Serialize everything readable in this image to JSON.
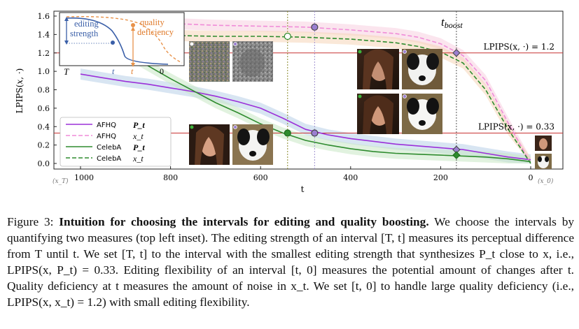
{
  "chart_data": {
    "type": "line",
    "xlabel": "t",
    "ylabel": "LPIPS(x, ·)",
    "xlim": [
      1000,
      0
    ],
    "ylim": [
      0,
      1.6
    ],
    "x_ticks": [
      1000,
      800,
      600,
      400,
      200,
      0
    ],
    "x_tick_labels": [
      "1000",
      "800",
      "600",
      "400",
      "200",
      "0"
    ],
    "x_left_annotation": "(x_T)",
    "x_right_annotation": "(x_0)",
    "y_ticks": [
      "0.0",
      "0.2",
      "0.4",
      "0.6",
      "0.8",
      "1.0",
      "1.2",
      "1.4",
      "1.6"
    ],
    "y_tick_values": [
      0,
      0.2,
      0.4,
      0.6,
      0.8,
      1.0,
      1.2,
      1.4,
      1.6
    ],
    "grid": false,
    "legend_position": "bottom-left",
    "series": [
      {
        "name": "AFHQ",
        "symbol": "P_t",
        "color": "#9b30d9",
        "dash": "solid",
        "x": [
          1000,
          950,
          900,
          850,
          800,
          750,
          700,
          650,
          600,
          550,
          500,
          450,
          400,
          350,
          300,
          250,
          200,
          150,
          100,
          50,
          0
        ],
        "values": [
          0.97,
          0.93,
          0.89,
          0.86,
          0.82,
          0.78,
          0.73,
          0.67,
          0.6,
          0.49,
          0.37,
          0.31,
          0.27,
          0.24,
          0.21,
          0.19,
          0.17,
          0.15,
          0.11,
          0.07,
          0.04
        ]
      },
      {
        "name": "AFHQ",
        "symbol": "x_t",
        "color": "#f08cd8",
        "dash": "dashed",
        "x": [
          1000,
          900,
          800,
          700,
          600,
          500,
          400,
          300,
          250,
          200,
          150,
          100,
          50,
          0
        ],
        "values": [
          1.54,
          1.53,
          1.52,
          1.5,
          1.49,
          1.48,
          1.45,
          1.41,
          1.37,
          1.3,
          1.17,
          0.9,
          0.44,
          0.0
        ]
      },
      {
        "name": "CelebA",
        "symbol": "P_t",
        "color": "#2e8b2e",
        "dash": "solid",
        "x": [
          1000,
          950,
          900,
          850,
          800,
          750,
          700,
          650,
          600,
          550,
          500,
          450,
          400,
          350,
          300,
          250,
          200,
          150,
          100,
          50,
          0
        ],
        "values": [
          1.5,
          1.35,
          1.2,
          1.06,
          0.92,
          0.79,
          0.66,
          0.55,
          0.43,
          0.33,
          0.25,
          0.2,
          0.16,
          0.13,
          0.11,
          0.1,
          0.09,
          0.08,
          0.07,
          0.05,
          0.02
        ]
      },
      {
        "name": "CelebA",
        "symbol": "x_t",
        "color": "#2e8b2e",
        "dash": "dashed",
        "x": [
          1000,
          900,
          800,
          700,
          600,
          500,
          400,
          300,
          250,
          200,
          150,
          100,
          50,
          0
        ],
        "values": [
          1.4,
          1.39,
          1.39,
          1.38,
          1.38,
          1.37,
          1.35,
          1.31,
          1.27,
          1.21,
          1.09,
          0.8,
          0.37,
          0.0
        ]
      }
    ],
    "markers": [
      {
        "x": 540,
        "y": 1.38,
        "color": "#2e8b2e",
        "fill": "#ffffff"
      },
      {
        "x": 480,
        "y": 1.48,
        "color": "#444444",
        "fill": "#9b7fd0"
      },
      {
        "x": 165,
        "y": 1.2,
        "color": "#444444",
        "fill": "#9b7fd0",
        "shape": "diamond"
      },
      {
        "x": 540,
        "y": 0.33,
        "color": "#1e6b1e",
        "fill": "#2e8b2e"
      },
      {
        "x": 480,
        "y": 0.33,
        "color": "#444444",
        "fill": "#9b7fd0"
      },
      {
        "x": 165,
        "y": 0.15,
        "color": "#444444",
        "fill": "#9b7fd0",
        "shape": "diamond"
      },
      {
        "x": 165,
        "y": 0.09,
        "color": "#1e6b1e",
        "fill": "#2e8b2e",
        "shape": "diamond"
      }
    ],
    "hlines": [
      {
        "y": 1.2,
        "label": "LPIPS(x, ·) = 1.2",
        "color": "#c83232"
      },
      {
        "y": 0.33,
        "label": "LPIPS(x, ·) = 0.33",
        "color": "#c83232"
      }
    ],
    "vlines": [
      {
        "x": 540,
        "color": "#8a8a2a"
      },
      {
        "x": 480,
        "color": "#a090d0"
      },
      {
        "x": 165,
        "color": "#555555"
      }
    ],
    "t_boost_label": "t_boost",
    "inset": {
      "editing_label_1": "editing",
      "editing_label_2": "strength",
      "quality_label_1": "quality",
      "quality_label_2": "deficiency",
      "T_label": "T",
      "t_label_1": "t",
      "t_label_2": "t",
      "zero_label": "0"
    }
  },
  "caption": {
    "figure_number": "Figure 3:",
    "title": "Intuition for choosing the intervals for editing and quality boosting.",
    "body": " We choose the intervals by quantifying two measures (top left inset). The editing strength of an interval [T, t] measures its perceptual difference from T until t. We set [T, t] to the interval with the smallest editing strength that synthesizes P_t close to x, i.e., LPIPS(x, P_t) = 0.33. Editing flexibility of an interval [t, 0] measures the potential amount of changes after t. Quality deficiency at t measures the amount of noise in x_t. We set [t, 0] to handle large quality deficiency (i.e., LPIPS(x, x_t) = 1.2) with small editing flexibility."
  }
}
